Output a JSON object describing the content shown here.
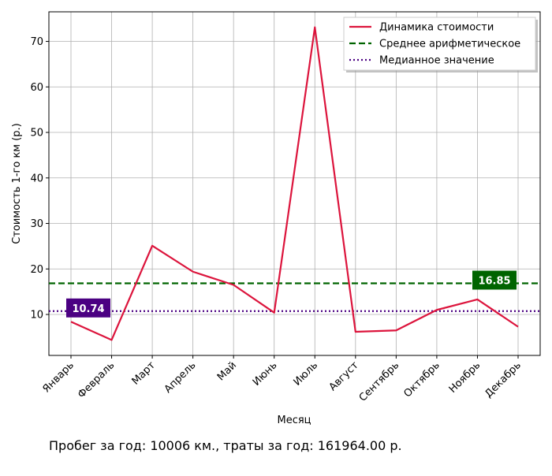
{
  "chart_data": {
    "type": "line",
    "title": "",
    "xlabel": "Месяц",
    "ylabel": "Стоимость 1-го км (р.)",
    "categories": [
      "Январь",
      "Февраль",
      "Март",
      "Апрель",
      "Май",
      "Июнь",
      "Июль",
      "Август",
      "Сентябрь",
      "Октябрь",
      "Ноябрь",
      "Декабрь"
    ],
    "series": [
      {
        "name": "Динамика стоимости",
        "values": [
          8.4,
          4.4,
          25.1,
          19.4,
          16.5,
          10.4,
          73.1,
          6.2,
          6.5,
          11.0,
          13.3,
          7.3
        ],
        "color": "#dc143c",
        "style": "solid"
      }
    ],
    "reference_lines": [
      {
        "name": "Среднее арифметическое",
        "value": 16.85,
        "label": "16.85",
        "color": "#006400",
        "style": "dashed"
      },
      {
        "name": "Медианное значение",
        "value": 10.74,
        "label": "10.74",
        "color": "#4b0082",
        "style": "dotted"
      }
    ],
    "ylim": [
      1,
      76.5
    ],
    "yticks": [
      10,
      20,
      30,
      40,
      50,
      60,
      70
    ],
    "grid": true,
    "legend_position": "top-right"
  },
  "footer": {
    "summary": "Пробег за год: 10006 км., траты за год: 161964.00 р."
  }
}
